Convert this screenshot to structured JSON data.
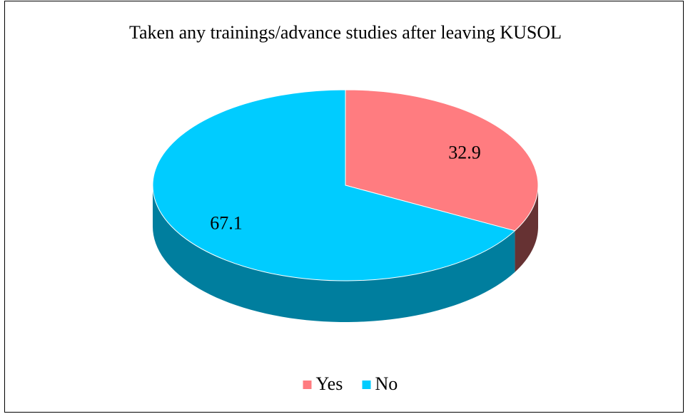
{
  "chart_data": {
    "type": "pie",
    "title": "Taken any trainings/advance studies after leaving KUSOL",
    "categories": [
      "Yes",
      "No"
    ],
    "values": [
      32.9,
      67.1
    ],
    "colors": [
      "#ff7c80",
      "#00ccff"
    ],
    "legend": "bottom"
  }
}
